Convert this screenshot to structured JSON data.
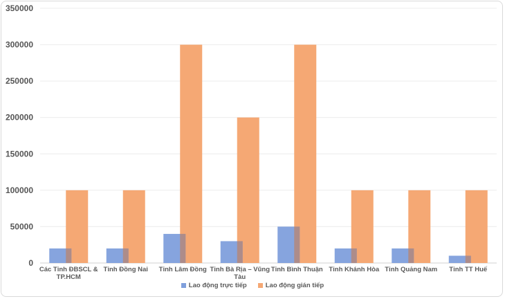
{
  "chart_data": {
    "type": "bar",
    "categories": [
      "Các Tỉnh ĐBSCL & TP.HCM",
      "Tỉnh Đồng Nai",
      "Tỉnh Lâm Đồng",
      "Tỉnh Bà Rịa – Vũng Tàu",
      "Tỉnh Bình Thuận",
      "Tỉnh Khánh Hòa",
      "Tỉnh Quảng Nam",
      "Tỉnh TT Huế"
    ],
    "category_lines": [
      [
        "Các Tỉnh ĐBSCL &",
        "TP.HCM"
      ],
      [
        "Tỉnh Đồng Nai"
      ],
      [
        "Tỉnh Lâm Đồng"
      ],
      [
        "Tỉnh Bà Rịa – Vũng",
        "Tàu"
      ],
      [
        "Tỉnh Bình Thuận"
      ],
      [
        "Tỉnh Khánh Hòa"
      ],
      [
        "Tỉnh Quảng Nam"
      ],
      [
        "Tỉnh TT Huế"
      ]
    ],
    "series": [
      {
        "name": "Lao động trực tiếp",
        "color": "#7f9fdc",
        "values": [
          20000,
          20000,
          40000,
          30000,
          50000,
          20000,
          20000,
          10000
        ]
      },
      {
        "name": "Lao động gián tiếp",
        "color": "#f5a874",
        "values": [
          100000,
          100000,
          300000,
          200000,
          300000,
          100000,
          100000,
          100000
        ]
      }
    ],
    "y_ticks": [
      "0",
      "50000",
      "100000",
      "150000",
      "200000",
      "250000",
      "300000",
      "350000"
    ],
    "ylim": [
      0,
      350000
    ],
    "title": "",
    "xlabel": "",
    "ylabel": "",
    "grid": true,
    "legend_position": "bottom"
  }
}
